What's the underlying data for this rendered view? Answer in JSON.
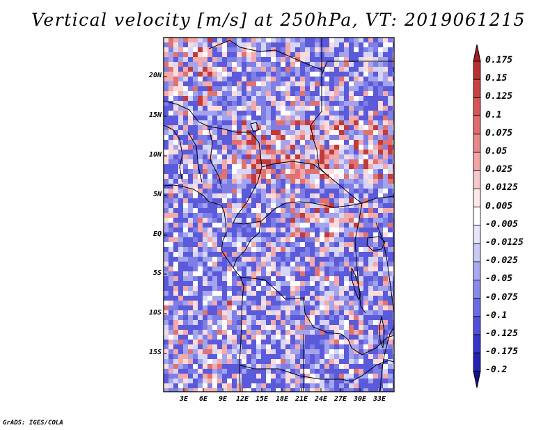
{
  "title": "Vertical velocity [m/s] at 250hPa, VT: 2019061215",
  "footer": "GrADS: IGES/COLA",
  "map": {
    "lat_labels": [
      "20N",
      "15N",
      "10N",
      "5N",
      "EQ",
      "5S",
      "10S",
      "15S"
    ],
    "lon_labels": [
      "3E",
      "6E",
      "9E",
      "12E",
      "15E",
      "18E",
      "21E",
      "24E",
      "27E",
      "30E",
      "33E"
    ]
  },
  "colorbar": {
    "levels": [
      "0.175",
      "0.15",
      "0.125",
      "0.1",
      "0.075",
      "0.05",
      "0.025",
      "0.0125",
      "0.005",
      "-0.005",
      "-0.0125",
      "-0.025",
      "-0.05",
      "-0.075",
      "-0.1",
      "-0.125",
      "-0.175",
      "-0.2"
    ],
    "colors": [
      "#a51f1f",
      "#b83030",
      "#c84242",
      "#d65656",
      "#e06d6d",
      "#e98888",
      "#f2a7a7",
      "#f9c9c9",
      "#fde7e7",
      "#ffffff",
      "#e6e6fb",
      "#c9c9f6",
      "#a9a9f0",
      "#8a8aeb",
      "#6b6be3",
      "#5050d8",
      "#3636c8",
      "#2424b0",
      "#14148a"
    ]
  }
}
